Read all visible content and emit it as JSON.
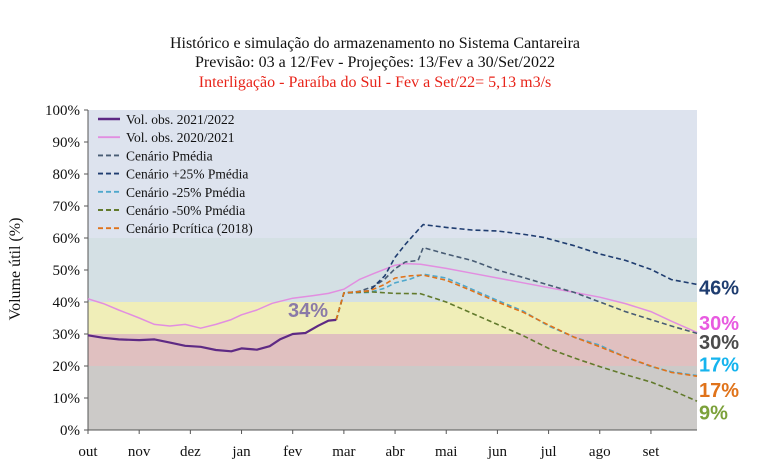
{
  "title_lines": [
    "Histórico e simulação do armazenamento no Sistema Cantareira",
    "Previsão: 03 a 12/Fev - Projeções: 13/Fev  a 30/Set/2022",
    "Interligação - Paraíba do Sul - Fev a Set/22= 5,13 m3/s"
  ],
  "colors": {
    "bands": [
      "#cccac8",
      "#e0c0c0",
      "#f0eeb8",
      "#d4e0e4",
      "#dde3ee"
    ],
    "title_red": "#e8241a"
  },
  "chart_data": {
    "type": "line",
    "ylabel": "Volume útil (%)",
    "ylim": [
      0,
      100
    ],
    "yticks": [
      "0%",
      "10%",
      "20%",
      "30%",
      "40%",
      "50%",
      "60%",
      "70%",
      "80%",
      "90%",
      "100%"
    ],
    "x_categories": [
      "out",
      "nov",
      "dez",
      "jan",
      "fev",
      "mar",
      "abr",
      "mai",
      "jun",
      "jul",
      "ago",
      "set"
    ],
    "x_range_months": [
      0,
      11.9
    ],
    "background_bands": [
      {
        "from": 0,
        "to": 20
      },
      {
        "from": 20,
        "to": 30
      },
      {
        "from": 30,
        "to": 40
      },
      {
        "from": 40,
        "to": 60
      },
      {
        "from": 60,
        "to": 100
      }
    ],
    "series": [
      {
        "name": "Vol. obs. 2021/2022",
        "color": "#5e2a84",
        "dash": "solid",
        "width": 2.2,
        "points": [
          [
            0,
            29.6
          ],
          [
            0.3,
            28.8
          ],
          [
            0.6,
            28.3
          ],
          [
            1,
            28.1
          ],
          [
            1.3,
            28.3
          ],
          [
            1.6,
            27.3
          ],
          [
            1.9,
            26.3
          ],
          [
            2.2,
            26
          ],
          [
            2.5,
            25
          ],
          [
            2.8,
            24.6
          ],
          [
            3,
            25.5
          ],
          [
            3.3,
            25.1
          ],
          [
            3.55,
            26.2
          ],
          [
            3.75,
            28.3
          ],
          [
            4,
            30
          ],
          [
            4.25,
            30.3
          ],
          [
            4.5,
            32.6
          ],
          [
            4.7,
            34.2
          ],
          [
            4.85,
            34.4
          ]
        ]
      },
      {
        "name": "Vol. obs. 2020/2021",
        "color": "#e28ee0",
        "dash": "solid",
        "width": 1.5,
        "points": [
          [
            0,
            41
          ],
          [
            0.3,
            39.5
          ],
          [
            0.6,
            37.5
          ],
          [
            1,
            35
          ],
          [
            1.3,
            33
          ],
          [
            1.6,
            32.5
          ],
          [
            1.9,
            33
          ],
          [
            2.2,
            31.8
          ],
          [
            2.5,
            33
          ],
          [
            2.8,
            34.5
          ],
          [
            3,
            36
          ],
          [
            3.3,
            37.5
          ],
          [
            3.6,
            39.6
          ],
          [
            4,
            41.2
          ],
          [
            4.4,
            42
          ],
          [
            4.7,
            42.7
          ],
          [
            5,
            44
          ],
          [
            5.3,
            47
          ],
          [
            5.6,
            49
          ],
          [
            6,
            51.5
          ],
          [
            6.2,
            52
          ],
          [
            6.5,
            51.8
          ],
          [
            7,
            50.5
          ],
          [
            7.5,
            49
          ],
          [
            8,
            47.5
          ],
          [
            8.5,
            46
          ],
          [
            9,
            44.5
          ],
          [
            9.5,
            43
          ],
          [
            10,
            41.5
          ],
          [
            10.5,
            39.5
          ],
          [
            11,
            37
          ],
          [
            11.4,
            34
          ],
          [
            11.9,
            30.5
          ]
        ]
      },
      {
        "name": "Cenário Pmédia",
        "color": "#485c74",
        "dash": "5,3",
        "width": 1.6,
        "points": [
          [
            4.85,
            34.4
          ],
          [
            5,
            42.8
          ],
          [
            5.3,
            43.3
          ],
          [
            5.6,
            45
          ],
          [
            5.8,
            47.2
          ],
          [
            6,
            50.4
          ],
          [
            6.2,
            52.5
          ],
          [
            6.45,
            53
          ],
          [
            6.55,
            57
          ],
          [
            7,
            55
          ],
          [
            7.5,
            53
          ],
          [
            8,
            50
          ],
          [
            8.5,
            47.7
          ],
          [
            9,
            45.3
          ],
          [
            9.5,
            43
          ],
          [
            10,
            40
          ],
          [
            10.5,
            37
          ],
          [
            11,
            34.5
          ],
          [
            11.4,
            32.5
          ],
          [
            11.9,
            30.2
          ]
        ]
      },
      {
        "name": "Cenário +25% Pmédia",
        "color": "#1f3d70",
        "dash": "5,3",
        "width": 1.6,
        "points": [
          [
            4.85,
            34.4
          ],
          [
            5,
            42.8
          ],
          [
            5.5,
            43.5
          ],
          [
            5.8,
            48.2
          ],
          [
            6,
            54
          ],
          [
            6.2,
            58
          ],
          [
            6.45,
            62.5
          ],
          [
            6.55,
            64.2
          ],
          [
            7,
            63.3
          ],
          [
            7.5,
            62.5
          ],
          [
            8,
            62.2
          ],
          [
            8.5,
            61.2
          ],
          [
            8.9,
            60.2
          ],
          [
            9.5,
            57.6
          ],
          [
            10,
            55
          ],
          [
            10.5,
            53
          ],
          [
            11,
            50.2
          ],
          [
            11.4,
            47
          ],
          [
            11.9,
            45.5
          ]
        ]
      },
      {
        "name": "Cenário -25% Pmédia",
        "color": "#4fa8cc",
        "dash": "5,3",
        "width": 1.6,
        "points": [
          [
            4.85,
            34.4
          ],
          [
            5,
            42.8
          ],
          [
            5.5,
            43
          ],
          [
            5.8,
            44.3
          ],
          [
            6,
            46
          ],
          [
            6.3,
            47.2
          ],
          [
            6.55,
            48.7
          ],
          [
            7,
            47.5
          ],
          [
            7.5,
            44
          ],
          [
            8,
            40.5
          ],
          [
            8.5,
            37.2
          ],
          [
            9,
            32.5
          ],
          [
            9.5,
            29
          ],
          [
            10,
            26.5
          ],
          [
            10.5,
            22.8
          ],
          [
            11,
            19.8
          ],
          [
            11.4,
            18.2
          ],
          [
            11.9,
            17
          ]
        ]
      },
      {
        "name": "Cenário -50% Pmédia",
        "color": "#627a2c",
        "dash": "5,3",
        "width": 1.6,
        "points": [
          [
            4.85,
            34.4
          ],
          [
            5,
            42.8
          ],
          [
            5.5,
            43.2
          ],
          [
            6,
            42.7
          ],
          [
            6.5,
            42.6
          ],
          [
            7,
            40
          ],
          [
            7.5,
            36.5
          ],
          [
            8,
            33
          ],
          [
            8.5,
            29.5
          ],
          [
            9,
            25.5
          ],
          [
            9.5,
            22.5
          ],
          [
            10,
            19.8
          ],
          [
            10.5,
            17.3
          ],
          [
            11,
            15
          ],
          [
            11.4,
            12.5
          ],
          [
            11.9,
            9
          ]
        ]
      },
      {
        "name": "Cenário Pcrítica (2018)",
        "color": "#e0731a",
        "dash": "5,3",
        "width": 1.6,
        "points": [
          [
            4.85,
            34.4
          ],
          [
            5,
            42.8
          ],
          [
            5.5,
            43.5
          ],
          [
            5.8,
            45.5
          ],
          [
            6,
            47.5
          ],
          [
            6.3,
            48.2
          ],
          [
            6.55,
            48.4
          ],
          [
            7,
            46.8
          ],
          [
            7.5,
            43.5
          ],
          [
            8,
            40
          ],
          [
            8.5,
            36.8
          ],
          [
            9,
            32.8
          ],
          [
            9.5,
            29
          ],
          [
            10,
            26
          ],
          [
            10.5,
            22.8
          ],
          [
            11,
            20
          ],
          [
            11.4,
            18
          ],
          [
            11.9,
            16.8
          ]
        ]
      }
    ],
    "annotations": [
      {
        "text": "34%",
        "color": "#8a7aa8",
        "x": 4.3,
        "y": 37.5,
        "anchor": "middle"
      },
      {
        "text": "46%",
        "color": "#1f3d70",
        "side": "right",
        "y": 44.5
      },
      {
        "text": "30%",
        "color": "#e85ae0",
        "side": "right",
        "y": 33.5
      },
      {
        "text": "30%",
        "color": "#4b4b4b",
        "side": "right",
        "y": 27.5
      },
      {
        "text": "17%",
        "color": "#16b4ee",
        "side": "right",
        "y": 20.5
      },
      {
        "text": "17%",
        "color": "#e0731a",
        "side": "right",
        "y": 12.5
      },
      {
        "text": "9%",
        "color": "#7ca13a",
        "side": "right",
        "y": 5.5
      }
    ]
  }
}
